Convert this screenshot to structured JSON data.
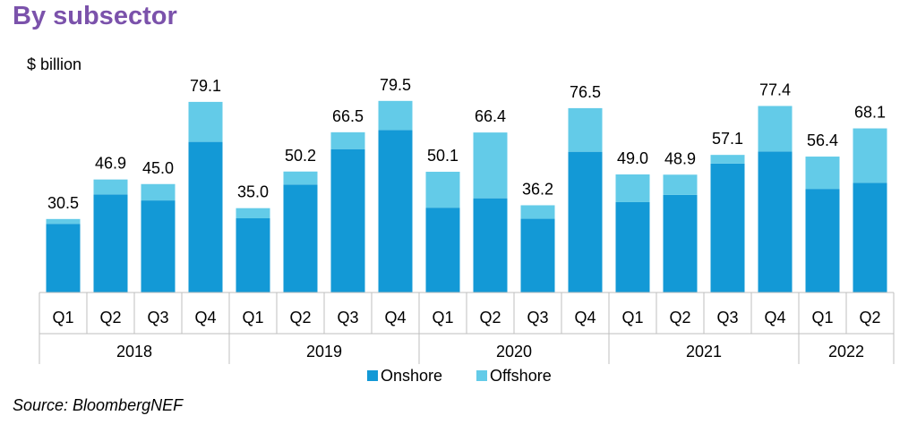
{
  "header": {
    "title": "By subsector",
    "title_color": "#7B52AB"
  },
  "footer": {
    "source": "Source: BloombergNEF"
  },
  "chart_data": {
    "type": "bar",
    "stacked": true,
    "ylabel": "$ billion",
    "ylim": [
      0,
      85
    ],
    "grid": false,
    "legend_position": "bottom",
    "categories": [
      "Q1",
      "Q2",
      "Q3",
      "Q4",
      "Q1",
      "Q2",
      "Q3",
      "Q4",
      "Q1",
      "Q2",
      "Q3",
      "Q4",
      "Q1",
      "Q2",
      "Q3",
      "Q4",
      "Q1",
      "Q2"
    ],
    "groups": [
      {
        "label": "2018",
        "count": 4
      },
      {
        "label": "2019",
        "count": 4
      },
      {
        "label": "2020",
        "count": 4
      },
      {
        "label": "2021",
        "count": 4
      },
      {
        "label": "2022",
        "count": 2
      }
    ],
    "series": [
      {
        "name": "Onshore",
        "color": "#1399D6",
        "values": [
          28.5,
          40.7,
          38.2,
          62.5,
          30.8,
          44.8,
          59.5,
          67.4,
          35.2,
          39.1,
          30.6,
          58.4,
          37.5,
          40.5,
          53.5,
          58.5,
          43.0,
          45.5
        ]
      },
      {
        "name": "Offshore",
        "color": "#63CBE8",
        "values": [
          2.0,
          6.2,
          6.8,
          16.6,
          4.2,
          5.4,
          7.0,
          12.1,
          14.9,
          27.3,
          5.6,
          18.1,
          11.5,
          8.4,
          3.6,
          18.9,
          13.4,
          22.6
        ]
      }
    ],
    "totals": [
      "30.5",
      "46.9",
      "45.0",
      "79.1",
      "35.0",
      "50.2",
      "66.5",
      "79.5",
      "50.1",
      "66.4",
      "36.2",
      "76.5",
      "49.0",
      "48.9",
      "57.1",
      "77.4",
      "56.4",
      "68.1"
    ]
  }
}
